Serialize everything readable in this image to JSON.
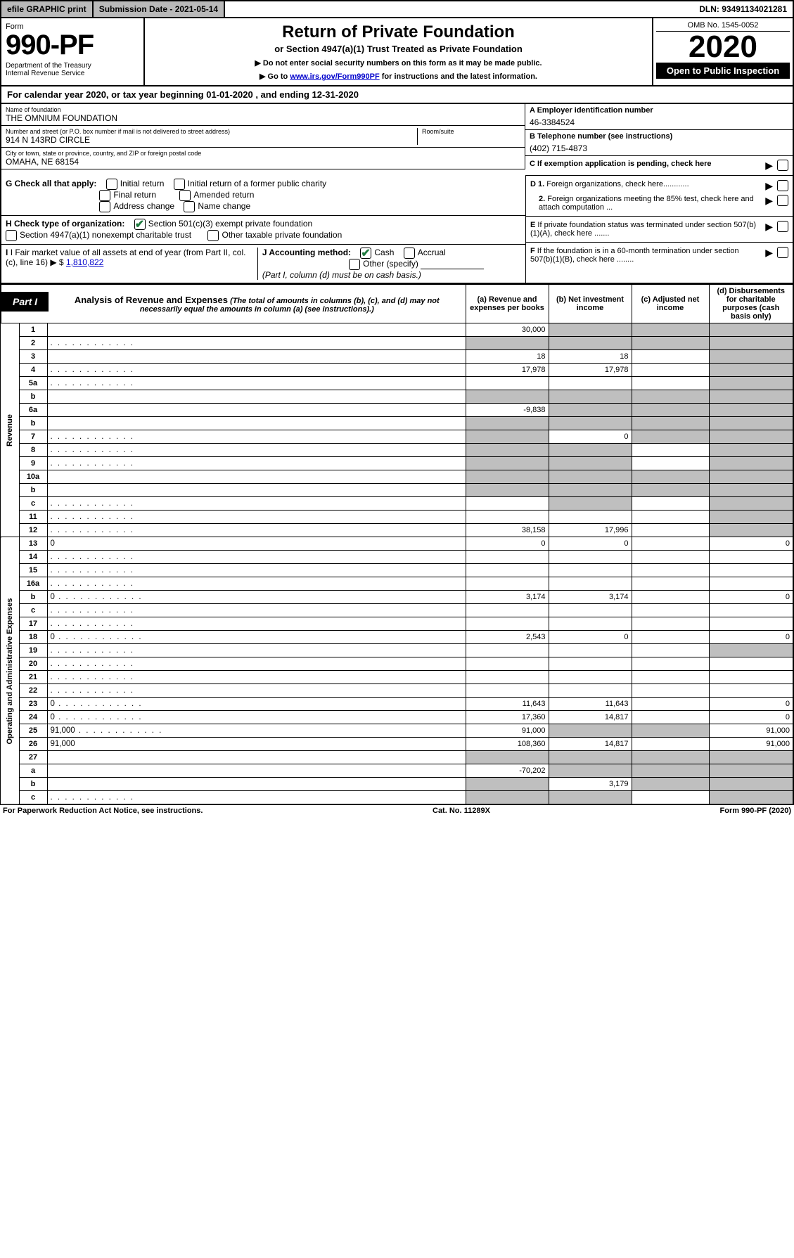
{
  "topbar": {
    "efile": "efile GRAPHIC print",
    "submission": "Submission Date - 2021-05-14",
    "dln": "DLN: 93491134021281"
  },
  "header": {
    "form_label": "Form",
    "form_number": "990-PF",
    "dept": "Department of the Treasury\nInternal Revenue Service",
    "title": "Return of Private Foundation",
    "subtitle": "or Section 4947(a)(1) Trust Treated as Private Foundation",
    "instr1": "▶ Do not enter social security numbers on this form as it may be made public.",
    "instr2_pre": "▶ Go to ",
    "instr2_link": "www.irs.gov/Form990PF",
    "instr2_post": " for instructions and the latest information.",
    "omb": "OMB No. 1545-0052",
    "year": "2020",
    "open": "Open to Public Inspection"
  },
  "cal": "For calendar year 2020, or tax year beginning 01-01-2020                     , and ending 12-31-2020",
  "id": {
    "name_label": "Name of foundation",
    "name": "THE OMNIUM FOUNDATION",
    "addr_label": "Number and street (or P.O. box number if mail is not delivered to street address)",
    "addr": "914 N 143RD CIRCLE",
    "room_label": "Room/suite",
    "citylabel": "City or town, state or province, country, and ZIP or foreign postal code",
    "city": "OMAHA, NE  68154",
    "a_label": "A Employer identification number",
    "a_val": "46-3384524",
    "b_label": "B Telephone number (see instructions)",
    "b_val": "(402) 715-4873",
    "c_label": "C If exemption application is pending, check here",
    "d1": "D 1. Foreign organizations, check here............",
    "d2": "2. Foreign organizations meeting the 85% test, check here and attach computation ...",
    "e": "E  If private foundation status was terminated under section 507(b)(1)(A), check here .......",
    "f": "F  If the foundation is in a 60-month termination under section 507(b)(1)(B), check here ........"
  },
  "checks": {
    "g_label": "G Check all that apply:",
    "g_opts": [
      "Initial return",
      "Initial return of a former public charity",
      "Final return",
      "Amended return",
      "Address change",
      "Name change"
    ],
    "h_label": "H Check type of organization:",
    "h_opt1": "Section 501(c)(3) exempt private foundation",
    "h_opt2": "Section 4947(a)(1) nonexempt charitable trust",
    "h_opt3": "Other taxable private foundation",
    "i_label": "I Fair market value of all assets at end of year (from Part II, col. (c), line 16) ▶ $",
    "i_val": "1,810,822",
    "j_label": "J Accounting method:",
    "j_cash": "Cash",
    "j_accrual": "Accrual",
    "j_other": "Other (specify)",
    "j_note": "(Part I, column (d) must be on cash basis.)"
  },
  "part1": {
    "label": "Part I",
    "title": "Analysis of Revenue and Expenses",
    "note": "(The total of amounts in columns (b), (c), and (d) may not necessarily equal the amounts in column (a) (see instructions).)",
    "cols": {
      "a": "(a)   Revenue and expenses per books",
      "b": "(b)   Net investment income",
      "c": "(c)   Adjusted net income",
      "d": "(d)   Disbursements for charitable purposes (cash basis only)"
    },
    "side_rev": "Revenue",
    "side_exp": "Operating and Administrative Expenses"
  },
  "rows": [
    {
      "n": "1",
      "d": "",
      "a": "30,000",
      "b": "",
      "c": "",
      "bg": true,
      "cg": true,
      "dg": true
    },
    {
      "n": "2",
      "d": "",
      "a": "",
      "b": "",
      "c": "",
      "ag": true,
      "bg": true,
      "cg": true,
      "dg": true,
      "dots": true
    },
    {
      "n": "3",
      "d": "",
      "a": "18",
      "b": "18",
      "c": "",
      "dg": true
    },
    {
      "n": "4",
      "d": "",
      "a": "17,978",
      "b": "17,978",
      "c": "",
      "dg": true,
      "dots": true
    },
    {
      "n": "5a",
      "d": "",
      "a": "",
      "b": "",
      "c": "",
      "dg": true,
      "dots": true
    },
    {
      "n": "b",
      "d": "",
      "a": "",
      "b": "",
      "c": "",
      "ag": true,
      "bg": true,
      "cg": true,
      "dg": true
    },
    {
      "n": "6a",
      "d": "",
      "a": "-9,838",
      "b": "",
      "c": "",
      "bg": true,
      "cg": true,
      "dg": true
    },
    {
      "n": "b",
      "d": "",
      "a": "",
      "b": "",
      "c": "",
      "ag": true,
      "bg": true,
      "cg": true,
      "dg": true
    },
    {
      "n": "7",
      "d": "",
      "a": "",
      "b": "0",
      "c": "",
      "ag": true,
      "cg": true,
      "dg": true,
      "dots": true
    },
    {
      "n": "8",
      "d": "",
      "a": "",
      "b": "",
      "c": "",
      "ag": true,
      "bg": true,
      "dg": true,
      "dots": true
    },
    {
      "n": "9",
      "d": "",
      "a": "",
      "b": "",
      "c": "",
      "ag": true,
      "bg": true,
      "dg": true,
      "dots": true
    },
    {
      "n": "10a",
      "d": "",
      "a": "",
      "b": "",
      "c": "",
      "ag": true,
      "bg": true,
      "cg": true,
      "dg": true
    },
    {
      "n": "b",
      "d": "",
      "a": "",
      "b": "",
      "c": "",
      "ag": true,
      "bg": true,
      "cg": true,
      "dg": true
    },
    {
      "n": "c",
      "d": "",
      "a": "",
      "b": "",
      "c": "",
      "bg": true,
      "dg": true,
      "dots": true
    },
    {
      "n": "11",
      "d": "",
      "a": "",
      "b": "",
      "c": "",
      "dg": true,
      "dots": true
    },
    {
      "n": "12",
      "d": "",
      "a": "38,158",
      "b": "17,996",
      "c": "",
      "dg": true,
      "dots": true
    },
    {
      "n": "13",
      "d": "0",
      "a": "0",
      "b": "0",
      "c": ""
    },
    {
      "n": "14",
      "d": "",
      "a": "",
      "b": "",
      "c": "",
      "dots": true
    },
    {
      "n": "15",
      "d": "",
      "a": "",
      "b": "",
      "c": "",
      "dots": true
    },
    {
      "n": "16a",
      "d": "",
      "a": "",
      "b": "",
      "c": "",
      "dots": true
    },
    {
      "n": "b",
      "d": "0",
      "a": "3,174",
      "b": "3,174",
      "c": "",
      "dots": true
    },
    {
      "n": "c",
      "d": "",
      "a": "",
      "b": "",
      "c": "",
      "dots": true
    },
    {
      "n": "17",
      "d": "",
      "a": "",
      "b": "",
      "c": "",
      "dots": true
    },
    {
      "n": "18",
      "d": "0",
      "a": "2,543",
      "b": "0",
      "c": "",
      "dots": true
    },
    {
      "n": "19",
      "d": "",
      "a": "",
      "b": "",
      "c": "",
      "dg": true,
      "dots": true
    },
    {
      "n": "20",
      "d": "",
      "a": "",
      "b": "",
      "c": "",
      "dots": true
    },
    {
      "n": "21",
      "d": "",
      "a": "",
      "b": "",
      "c": "",
      "dots": true
    },
    {
      "n": "22",
      "d": "",
      "a": "",
      "b": "",
      "c": "",
      "dots": true
    },
    {
      "n": "23",
      "d": "0",
      "a": "11,643",
      "b": "11,643",
      "c": "",
      "dots": true
    },
    {
      "n": "24",
      "d": "0",
      "a": "17,360",
      "b": "14,817",
      "c": "",
      "dots": true
    },
    {
      "n": "25",
      "d": "91,000",
      "a": "91,000",
      "b": "",
      "c": "",
      "bg": true,
      "cg": true,
      "dots": true
    },
    {
      "n": "26",
      "d": "91,000",
      "a": "108,360",
      "b": "14,817",
      "c": ""
    },
    {
      "n": "27",
      "d": "",
      "a": "",
      "b": "",
      "c": "",
      "ag": true,
      "bg": true,
      "cg": true,
      "dg": true
    },
    {
      "n": "a",
      "d": "",
      "a": "-70,202",
      "b": "",
      "c": "",
      "bg": true,
      "cg": true,
      "dg": true
    },
    {
      "n": "b",
      "d": "",
      "a": "",
      "b": "3,179",
      "c": "",
      "ag": true,
      "cg": true,
      "dg": true
    },
    {
      "n": "c",
      "d": "",
      "a": "",
      "b": "",
      "c": "",
      "ag": true,
      "bg": true,
      "dg": true,
      "dots": true
    }
  ],
  "footer": {
    "left": "For Paperwork Reduction Act Notice, see instructions.",
    "mid": "Cat. No. 11289X",
    "right": "Form 990-PF (2020)"
  },
  "colors": {
    "grey": "#bfbfbf",
    "link": "#0000cc",
    "check": "#1f7a3f"
  }
}
